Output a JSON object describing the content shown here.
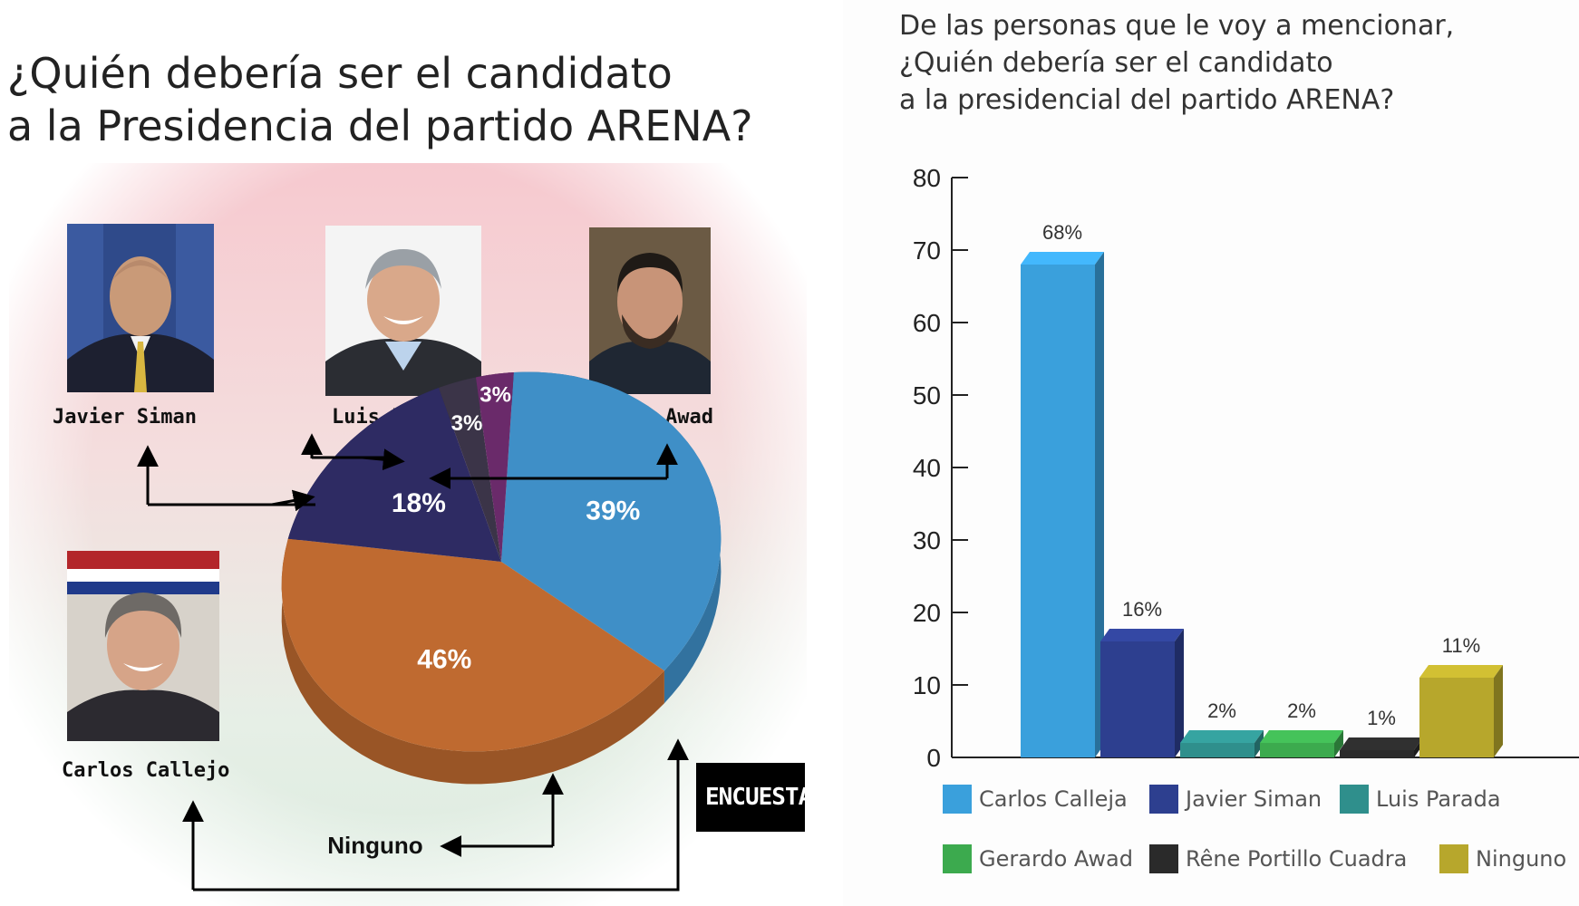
{
  "left": {
    "title_line1": "¿Quién debería ser el candidato",
    "title_line2": "a la Presidencia del partido ARENA?",
    "candidates": [
      {
        "name": "Javier Siman"
      },
      {
        "name": "Luis Parada"
      },
      {
        "name": "Gerardo Awad"
      },
      {
        "name": "Carlos Callejo"
      }
    ],
    "ninguno_label": "Ninguno",
    "badge": "ENCUESTA"
  },
  "right": {
    "title_line1": "De las personas que le voy a mencionar,",
    "title_line2": "¿Quién debería ser el candidato",
    "title_line3": "a la presidencial del partido ARENA?"
  },
  "chart_data": [
    {
      "type": "pie",
      "title": "¿Quién debería ser el candidato a la Presidencia del partido ARENA?",
      "slices": [
        {
          "label": "39%",
          "value": 39,
          "color": "#3f8fc7"
        },
        {
          "label": "46%",
          "value": 46,
          "color": "#bf6a30"
        },
        {
          "label": "18%",
          "value": 18,
          "color": "#2e2b63"
        },
        {
          "label": "3%",
          "value": 3,
          "color": "#3b3448"
        },
        {
          "label": "3%",
          "value": 3,
          "color": "#6a2a6a"
        }
      ]
    },
    {
      "type": "bar",
      "title": "De las personas que le voy a mencionar, ¿Quién debería ser el candidato a la presidencial del partido ARENA?",
      "categories": [
        "Carlos Calleja",
        "Javier Siman",
        "Luis Parada",
        "Gerardo Awad",
        "Rene Portillo Cuadra",
        "Ninguno"
      ],
      "values": [
        68,
        16,
        2,
        2,
        1,
        11
      ],
      "data_labels": [
        "68%",
        "16%",
        "2%",
        "2%",
        "1%",
        "11%"
      ],
      "yticks": [
        "80",
        "70",
        "60",
        "50",
        "40",
        "30",
        "20",
        "10",
        "0"
      ],
      "ylim": [
        0,
        80
      ],
      "legend": [
        {
          "label": "Carlos Calleja",
          "color": "#3aa0dc"
        },
        {
          "label": "Javier Siman",
          "color": "#2d3f8f"
        },
        {
          "label": "Luis Parada",
          "color": "#2f8f8c"
        },
        {
          "label": "Gerardo Awad",
          "color": "#3caa4e"
        },
        {
          "label": "Rêne Portillo Cuadra",
          "color": "#2a2a2a"
        },
        {
          "label": "Ninguno",
          "color": "#b7a72c"
        }
      ],
      "legend_position": "bottom",
      "grid": false
    }
  ]
}
